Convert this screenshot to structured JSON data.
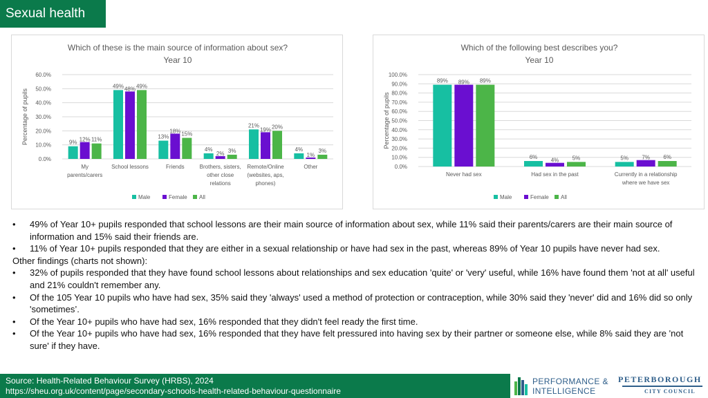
{
  "header": {
    "title": "Sexual health"
  },
  "colors": {
    "male": "#17bfa2",
    "female": "#6a0fd0",
    "all": "#4cb548",
    "brand": "#0b7a4b",
    "grid": "#d9d9d9",
    "text": "#595959"
  },
  "chart_data": [
    {
      "type": "bar",
      "title": "Which of these is the main source of information about sex?",
      "subtitle": "Year 10",
      "ylabel": "Percentage of pupils",
      "xlabel": "",
      "ylim": [
        0,
        60
      ],
      "yticks": [
        "0.0%",
        "10.0%",
        "20.0%",
        "30.0%",
        "40.0%",
        "50.0%",
        "60.0%"
      ],
      "categories": [
        [
          "My",
          "parents/carers"
        ],
        [
          "School lessons"
        ],
        [
          "Friends"
        ],
        [
          "Brothers, sisters,",
          "other close",
          "relations"
        ],
        [
          "Remote/Online",
          "(websites, aps,",
          "phones)"
        ],
        [
          "Other"
        ]
      ],
      "series": [
        {
          "name": "Male",
          "values": [
            9,
            49,
            13,
            4,
            21,
            4
          ],
          "labels": [
            "9%",
            "49%",
            "13%",
            "4%",
            "21%",
            "4%"
          ]
        },
        {
          "name": "Female",
          "values": [
            12,
            48,
            18,
            2,
            19,
            1
          ],
          "labels": [
            "12%",
            "48%",
            "18%",
            "2%",
            "19%",
            "1%"
          ]
        },
        {
          "name": "All",
          "values": [
            11,
            49,
            15,
            3,
            20,
            3
          ],
          "labels": [
            "11%",
            "49%",
            "15%",
            "3%",
            "20%",
            "3%"
          ]
        }
      ],
      "legend": "bottom",
      "grid": true
    },
    {
      "type": "bar",
      "title": "Which of the following best describes you?",
      "subtitle": "Year 10",
      "ylabel": "Percentage of pupils",
      "xlabel": "",
      "ylim": [
        0,
        100
      ],
      "yticks": [
        "0.0%",
        "10.0%",
        "20.0%",
        "30.0%",
        "40.0%",
        "50.0%",
        "60.0%",
        "70.0%",
        "80.0%",
        "90.0%",
        "100.0%"
      ],
      "categories": [
        [
          "Never had sex"
        ],
        [
          "Had sex in the past"
        ],
        [
          "Currently in a relationship",
          "where we have sex"
        ]
      ],
      "series": [
        {
          "name": "Male",
          "values": [
            89,
            6,
            5
          ],
          "labels": [
            "89%",
            "6%",
            "5%"
          ]
        },
        {
          "name": "Female",
          "values": [
            89,
            4,
            7
          ],
          "labels": [
            "89%",
            "4%",
            "7%"
          ]
        },
        {
          "name": "All",
          "values": [
            89,
            5,
            6
          ],
          "labels": [
            "89%",
            "5%",
            "6%"
          ]
        }
      ],
      "legend": "bottom",
      "grid": true
    }
  ],
  "notes": {
    "bullets_top": [
      "49% of Year 10+ pupils responded that school lessons are their main source of information about sex, while 11% said their parents/carers are their main source of information and 15%  said their friends are.",
      "11% of Year 10+ pupils responded that they are either in a sexual relationship or have had sex in the past, whereas 89% of Year 10 pupils have never had sex."
    ],
    "other_heading": "Other findings (charts not shown):",
    "bullets_other": [
      "32% of pupils responded that they have found school lessons about relationships and sex education 'quite' or 'very' useful, while 16% have found them 'not at all' useful and 21%  couldn't remember any.",
      "Of the 105 Year 10 pupils who have had sex, 35% said they 'always' used a method of protection or contraception, while 30% said they 'never' did and 16% did so only 'sometimes’.",
      "Of the Year 10+ pupils who have had sex, 16% responded that they didn't feel ready the first time.",
      "Of the Year 10+ pupils who have had sex, 16% responded that they have felt pressured into having sex by their partner or someone else, while 8% said they are 'not sure' if they have."
    ],
    "bullet_char": "•"
  },
  "footer": {
    "source": "Source: Health-Related Behaviour Survey (HRBS), 2024",
    "url": "https://sheu.org.uk/content/page/secondary-schools-health-related-behaviour-questionnaire",
    "logo1_line1": "PERFORMANCE &",
    "logo1_line2": "INTELLIGENCE",
    "logo2_line1": "PETERBOROUGH",
    "logo2_line2": "CITY COUNCIL"
  }
}
